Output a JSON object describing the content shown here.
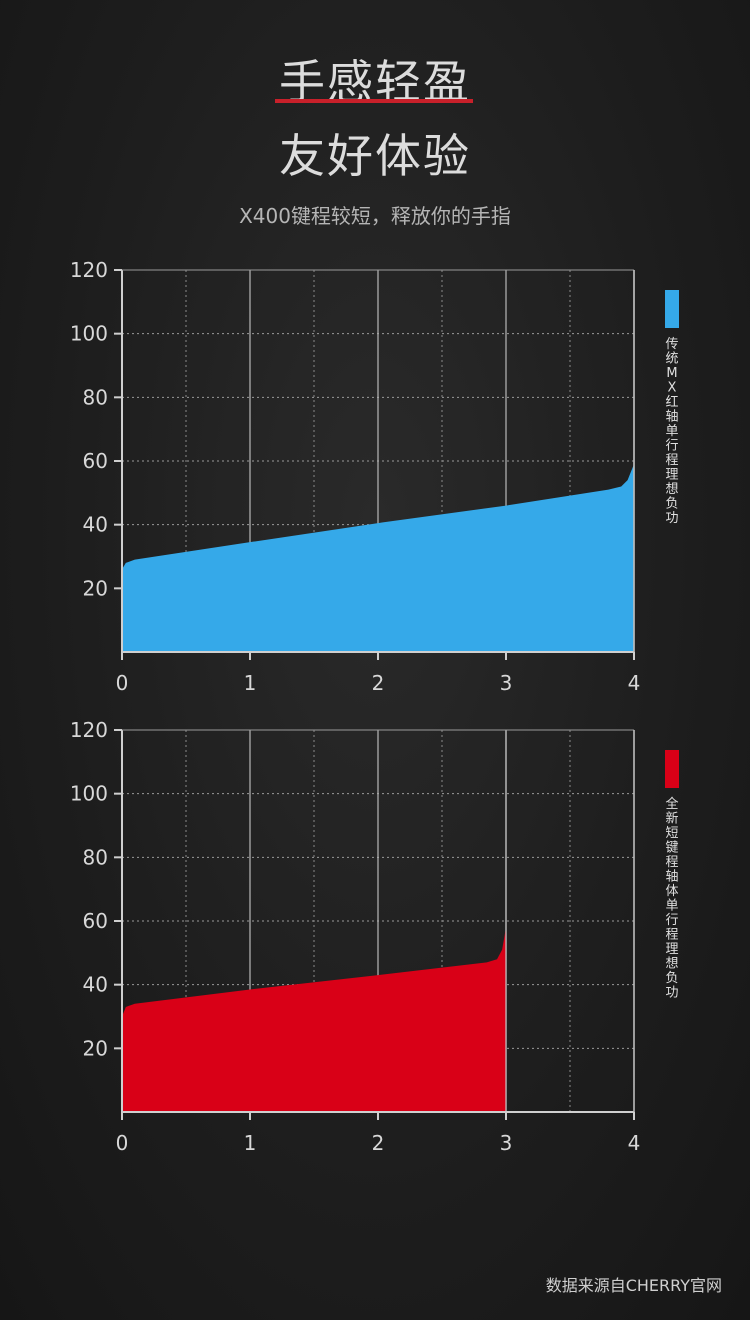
{
  "header": {
    "title_line1": "手感轻盈",
    "title_line2": "友好体验",
    "subtitle": "X400键程较短，释放你的手指"
  },
  "source_note": "数据来源自CHERRY官网",
  "chart_data": [
    {
      "type": "area",
      "series": [
        {
          "name": "传统MX红轴单行程理想负功",
          "color": "#35a9e9",
          "x": [
            0,
            0.03,
            0.1,
            1,
            2,
            3,
            3.8,
            3.9,
            3.95,
            4
          ],
          "y": [
            26,
            28,
            29,
            34.5,
            40.5,
            46,
            51,
            52,
            54,
            59
          ]
        }
      ],
      "xlim": [
        0,
        4
      ],
      "ylim": [
        0,
        120
      ],
      "xticks": [
        0,
        1,
        2,
        3,
        4
      ],
      "yticks": [
        20,
        40,
        60,
        80,
        100,
        120
      ],
      "grid": true,
      "legend": "right"
    },
    {
      "type": "area",
      "series": [
        {
          "name": "全新短键程轴体单行程理想负功",
          "color": "#d90017",
          "x": [
            0,
            0.03,
            0.1,
            1,
            2,
            2.85,
            2.93,
            2.97,
            3
          ],
          "y": [
            30,
            33,
            34,
            38.5,
            43,
            47,
            48,
            51,
            58
          ]
        }
      ],
      "xlim": [
        0,
        4
      ],
      "ylim": [
        0,
        120
      ],
      "xticks": [
        0,
        1,
        2,
        3,
        4
      ],
      "yticks": [
        20,
        40,
        60,
        80,
        100,
        120
      ],
      "grid": true,
      "legend": "right"
    }
  ]
}
